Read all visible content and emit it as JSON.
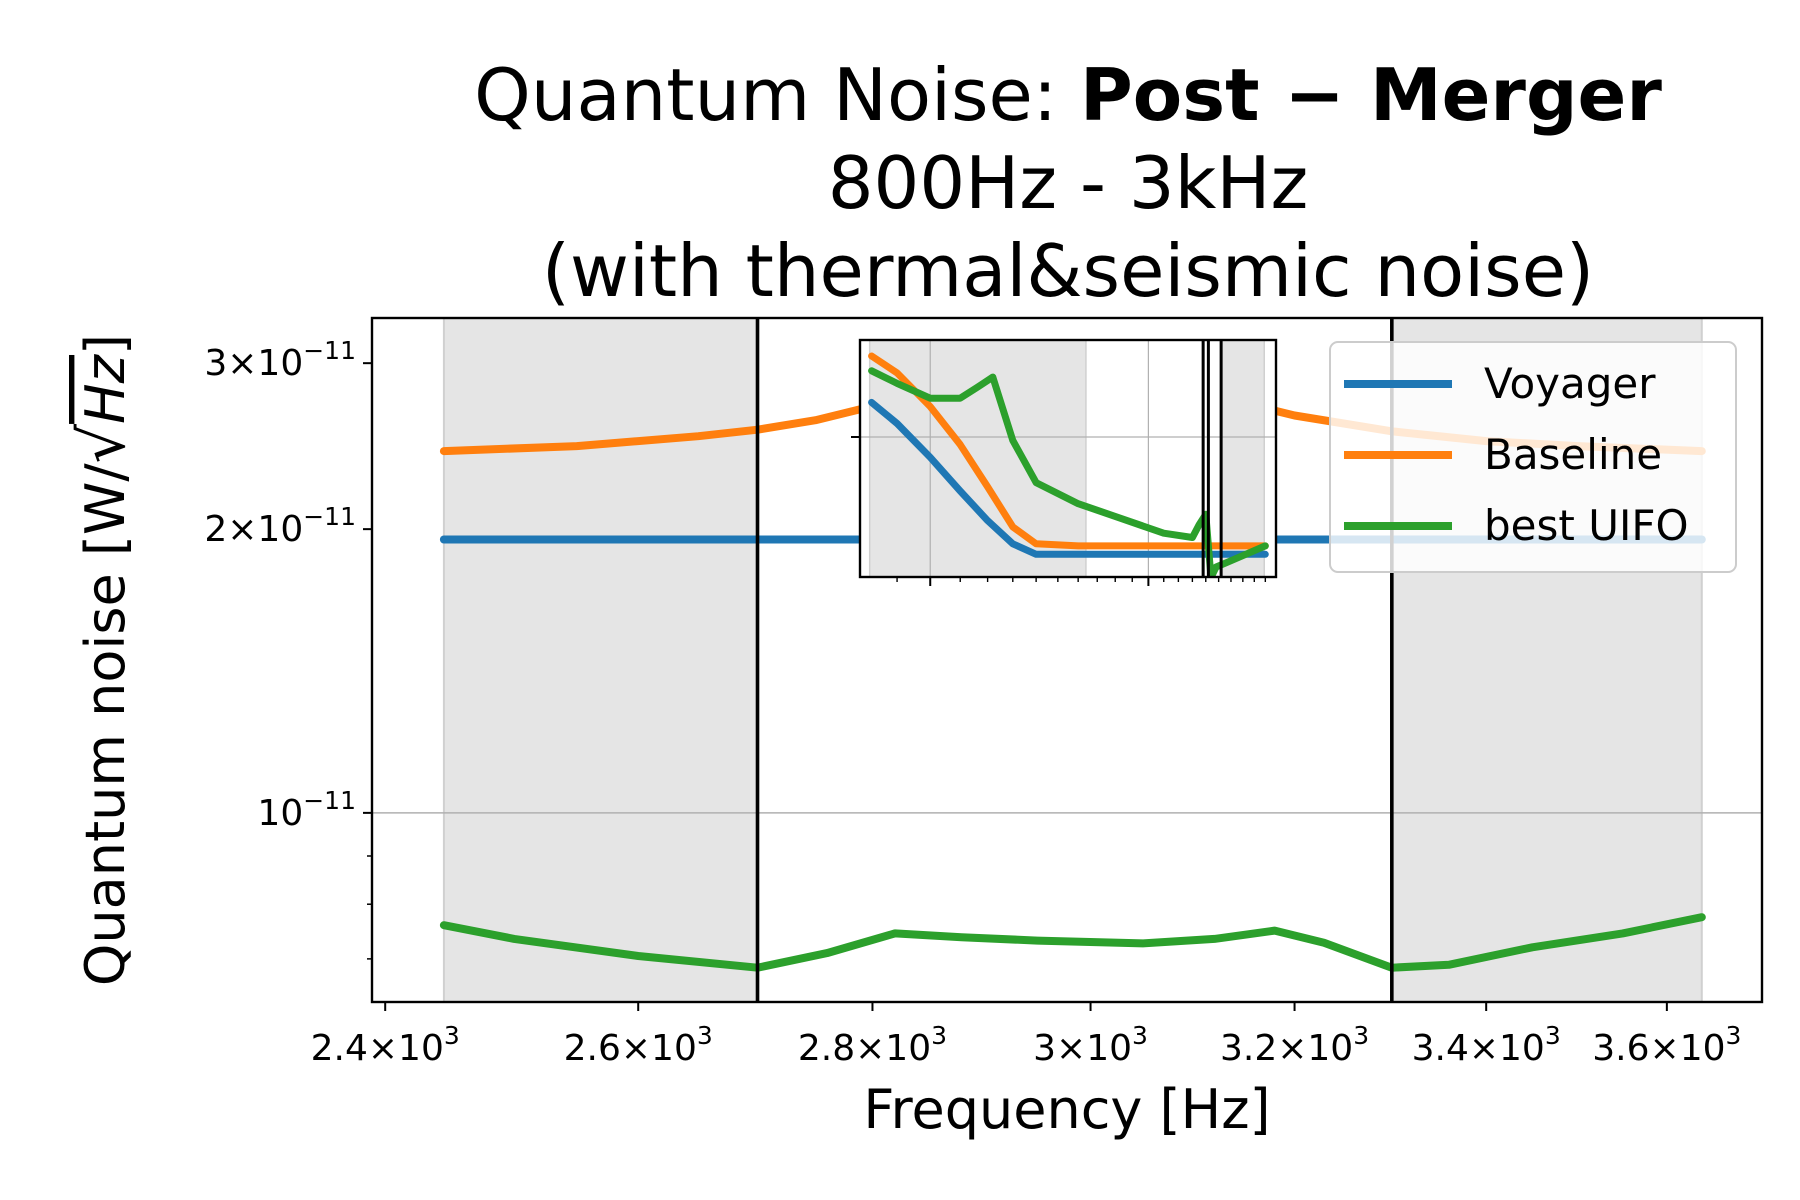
{
  "chart_data": {
    "type": "line",
    "title_prefix": "Quantum Noise: ",
    "title_bold": "Post − Merger",
    "subtitle_1": "800Hz - 3kHz",
    "subtitle_2": "(with thermal&seismic noise)",
    "xlabel": "Frequency [Hz]",
    "ylabel": "Quantum noise [W/√Hz]",
    "ylabel_main": "Quantum noise [W/",
    "ylabel_sqrt": "√",
    "ylabel_hz": "Hz",
    "ylabel_end": "]",
    "x_scale": "log",
    "y_scale": "log",
    "xlim": [
      2390,
      3710
    ],
    "ylim": [
      6.3e-12,
      3.35e-11
    ],
    "x_ticks": [
      {
        "value": 2400,
        "mant": "2.4",
        "exp": "3"
      },
      {
        "value": 2600,
        "mant": "2.6",
        "exp": "3"
      },
      {
        "value": 2800,
        "mant": "2.8",
        "exp": "3"
      },
      {
        "value": 3000,
        "mant": "3",
        "exp": "3"
      },
      {
        "value": 3200,
        "mant": "3.2",
        "exp": "3"
      },
      {
        "value": 3400,
        "mant": "3.4",
        "exp": "3"
      },
      {
        "value": 3600,
        "mant": "3.6",
        "exp": "3"
      }
    ],
    "y_ticks": [
      {
        "value": 3e-11,
        "mant": "3",
        "exp": "−11"
      },
      {
        "value": 2e-11,
        "mant": "2",
        "exp": "−11"
      },
      {
        "value": 1e-11,
        "mant": "",
        "exp": "−11"
      }
    ],
    "y_minor_ticks": [
      9e-12,
      8e-12,
      7e-12
    ],
    "grid": "horizontal at 1e-11",
    "shaded_regions": [
      [
        2445,
        2700
      ],
      [
        3300,
        3640
      ]
    ],
    "vertical_lines": [
      2700,
      3300
    ],
    "series": [
      {
        "name": "Voyager",
        "color": "#1f77b4",
        "x": [
          2445,
          2700,
          3000,
          3300,
          3640
        ],
        "y": [
          1.95e-11,
          1.95e-11,
          1.95e-11,
          1.95e-11,
          1.95e-11
        ]
      },
      {
        "name": "Baseline",
        "color": "#ff7f0e",
        "x": [
          2445,
          2550,
          2650,
          2700,
          2750,
          2800,
          2850,
          2900,
          2950,
          3000,
          3050,
          3100,
          3150,
          3200,
          3300,
          3400,
          3500,
          3640
        ],
        "y": [
          2.42e-11,
          2.45e-11,
          2.51e-11,
          2.55e-11,
          2.61e-11,
          2.7e-11,
          2.83e-11,
          2.98e-11,
          3.06e-11,
          3.06e-11,
          2.97e-11,
          2.84e-11,
          2.72e-11,
          2.64e-11,
          2.54e-11,
          2.48e-11,
          2.45e-11,
          2.42e-11
        ]
      },
      {
        "name": "best UIFO",
        "color": "#2ca02c",
        "x": [
          2445,
          2500,
          2600,
          2700,
          2760,
          2820,
          2880,
          2950,
          3050,
          3120,
          3180,
          3230,
          3300,
          3360,
          3450,
          3550,
          3640
        ],
        "y": [
          7.6e-12,
          7.35e-12,
          7.05e-12,
          6.85e-12,
          7.1e-12,
          7.45e-12,
          7.38e-12,
          7.32e-12,
          7.27e-12,
          7.35e-12,
          7.5e-12,
          7.28e-12,
          6.85e-12,
          6.9e-12,
          7.2e-12,
          7.45e-12,
          7.75e-12
        ]
      }
    ],
    "legend": {
      "position": "upper right",
      "entries": [
        "Voyager",
        "Baseline",
        "best UIFO"
      ]
    },
    "inset": {
      "description_type": "zoomed view",
      "x_scale": "log",
      "xlim": [
        800,
        3000
      ],
      "ylim": [
        0,
        1
      ],
      "shaded_regions": [
        [
          825,
          1640
        ],
        [
          2520,
          2890
        ]
      ],
      "vertical_lines": [
        2380,
        2420,
        2520
      ],
      "series": [
        {
          "name": "Voyager",
          "color": "#1f77b4",
          "x": [
            830,
            900,
            1000,
            1100,
            1200,
            1300,
            1400,
            2900
          ],
          "y": [
            0.78,
            0.68,
            0.52,
            0.36,
            0.22,
            0.11,
            0.06,
            0.06
          ]
        },
        {
          "name": "Baseline",
          "color": "#ff7f0e",
          "x": [
            830,
            900,
            1000,
            1100,
            1200,
            1300,
            1400,
            1600,
            2900
          ],
          "y": [
            1.0,
            0.92,
            0.76,
            0.58,
            0.38,
            0.19,
            0.11,
            0.1,
            0.1
          ]
        },
        {
          "name": "best UIFO",
          "color": "#2ca02c",
          "x": [
            830,
            900,
            1000,
            1100,
            1160,
            1220,
            1300,
            1400,
            1600,
            1800,
            2100,
            2300,
            2350,
            2400,
            2440,
            2480,
            2560,
            2900
          ],
          "y": [
            0.93,
            0.87,
            0.8,
            0.8,
            0.85,
            0.9,
            0.6,
            0.4,
            0.3,
            0.24,
            0.16,
            0.14,
            0.2,
            0.25,
            -0.05,
            0.0,
            0.02,
            0.1
          ]
        }
      ]
    }
  }
}
